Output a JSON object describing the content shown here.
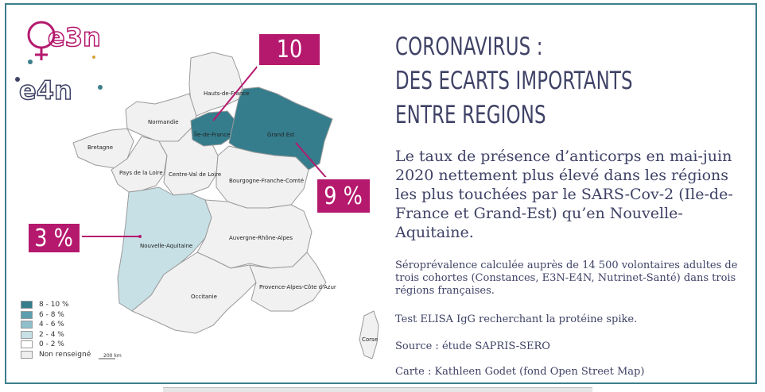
{
  "logo": {
    "line1": "e3n",
    "line2": "e4n",
    "plus": "+"
  },
  "title": {
    "line1": "CORONAVIRUS :",
    "line2": "DES ECARTS IMPORTANTS",
    "line3": "ENTRE REGIONS"
  },
  "lead": "Le taux de présence d’anticorps en mai-juin 2020 nettement plus élevé dans les régions les plus touchées par le SARS-Cov-2 (Ile-de-France et Grand-Est) qu’en Nouvelle-Aquitaine.",
  "notes": {
    "seroprevalence": "Séroprévalence calculée auprès de 14 500 volontaires adultes de trois cohortes (Constances, E3N-E4N, Nutrinet-Santé) dans trois régions françaises.",
    "test": "Test ELISA IgG recherchant la protéine spike.",
    "source": "Source : étude SAPRIS-SERO",
    "credit": "Carte : Kathleen Godet (fond Open Street Map)"
  },
  "callouts": {
    "ile_de_france": "10 %",
    "grand_est": "9 %",
    "nouvelle_aquitaine": "3 %"
  },
  "regions": {
    "hauts_de_france": "Hauts-de-France",
    "normandie": "Normandie",
    "ile_de_france": "Île-de-France",
    "grand_est": "Grand Est",
    "bretagne": "Bretagne",
    "pays_de_la_loire": "Pays de la Loire",
    "centre_val_de_loire": "Centre-Val de Loire",
    "bourgogne_franche_comte": "Bourgogne-Franche-Comté",
    "nouvelle_aquitaine": "Nouvelle-Aquitaine",
    "auvergne_rhone_alpes": "Auvergne-Rhône-Alpes",
    "occitanie": "Occitanie",
    "paca": "Provence-Alpes-Côte d'Azur",
    "corse": "Corse"
  },
  "region_levels": {
    "ile_de_france": "8 - 10 %",
    "grand_est": "8 - 10 %",
    "nouvelle_aquitaine": "2 - 4 %"
  },
  "legend": [
    {
      "label": "8 - 10 %",
      "color": "#357d8d"
    },
    {
      "label": "6 - 8 %",
      "color": "#5d9fae"
    },
    {
      "label": "4 - 6 %",
      "color": "#8fbfcb"
    },
    {
      "label": "2 - 4 %",
      "color": "#c6e0e6"
    },
    {
      "label": "0 - 2 %",
      "color": "#ffffff"
    },
    {
      "label": "Non renseigné",
      "color": "#eeeeee"
    }
  ],
  "scale": "200 km",
  "colors": {
    "accent_magenta": "#b5196e",
    "frame_teal": "#3d7f8c",
    "text_navy": "#3f4266"
  }
}
